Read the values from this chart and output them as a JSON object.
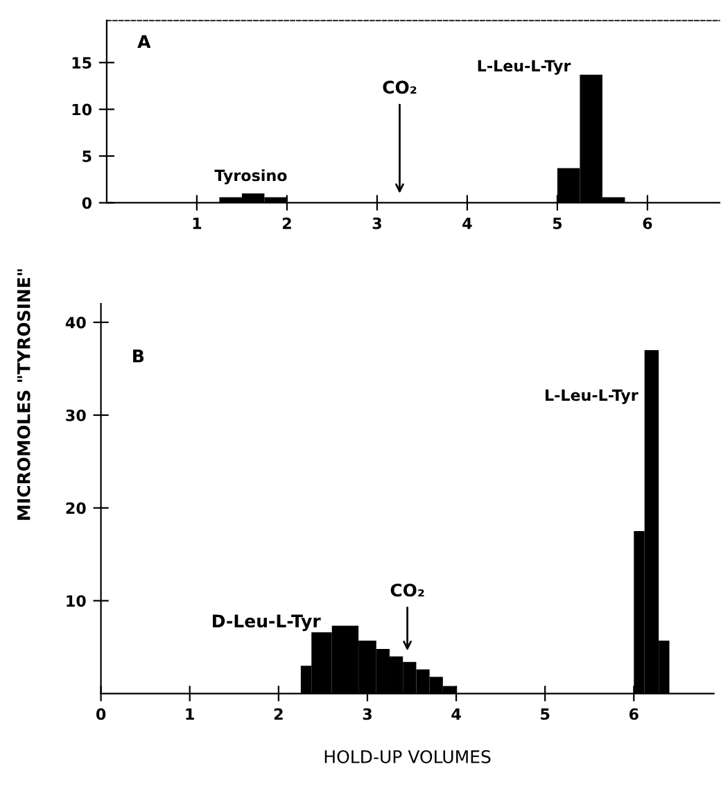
{
  "chart_data": [
    {
      "type": "histogram",
      "bins": [
        1.25,
        1.5,
        1.75,
        2.0,
        5.0,
        5.25,
        5.5,
        5.75
      ],
      "values": [
        0.6,
        1.0,
        0.6,
        0,
        3.7,
        13.7,
        0.6
      ],
      "color": "#000000",
      "xlim": [
        0,
        6.8
      ],
      "xticks": [
        1,
        2,
        3,
        4,
        5,
        6
      ],
      "ylim": [
        0,
        19.5
      ],
      "yticks": [
        0,
        5,
        10,
        15
      ],
      "grid": false,
      "ylabel": "MICROMOLES \"TYROSINE\"",
      "annotations": [
        "A",
        {
          "text": "Tyrosino",
          "x": 1.6,
          "y": 1.0
        },
        {
          "text": "L-Leu-L-Tyr",
          "x": 5.2,
          "y": 13.7
        },
        "CO₂"
      ]
    },
    {
      "type": "histogram",
      "bins": [
        2.25,
        2.37,
        2.6,
        2.9,
        3.1,
        3.25,
        3.4,
        3.55,
        3.7,
        3.85,
        4.0,
        6.0,
        6.12,
        6.28,
        6.4
      ],
      "values": [
        3.0,
        6.6,
        7.3,
        5.7,
        4.8,
        4.0,
        3.4,
        2.6,
        1.8,
        0.8,
        0,
        17.5,
        37,
        5.7
      ],
      "color": "#000000",
      "xlim": [
        0,
        6.9
      ],
      "xticks": [
        0,
        1,
        2,
        3,
        4,
        5,
        6
      ],
      "ylim": [
        0,
        42
      ],
      "yticks": [
        10,
        20,
        30,
        40
      ],
      "grid": false,
      "xlabel": "HOLD-UP VOLUMES",
      "annotations": [
        "B",
        {
          "text": "L-Leu-L-Tyr",
          "x": 6.1,
          "y": 32
        },
        "D-Leu-L-Tyr",
        "CO₂"
      ]
    }
  ]
}
